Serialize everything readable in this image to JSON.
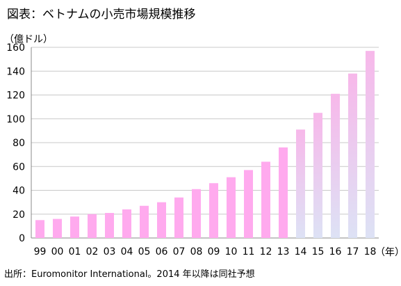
{
  "title": "図表：ベトナムの小売市場規模推移",
  "source_note": "出所：Euromonitor International。2014 年以降は同社予想",
  "colors": {
    "actual_bar": "#ffaaee",
    "forecast_top": "#f7b8ea",
    "forecast_bottom": "#dde2f5",
    "gridline": "#c8c8c8",
    "axis": "#888888"
  },
  "chart_data": {
    "type": "bar",
    "title": "図表：ベトナムの小売市場規模推移",
    "ylabel": "（億ドル）",
    "xlabel": "（年）",
    "ylim": [
      0,
      160
    ],
    "y_ticks": [
      "0",
      "20",
      "40",
      "60",
      "80",
      "100",
      "120",
      "140",
      "160"
    ],
    "grid": true,
    "categories": [
      "99",
      "00",
      "01",
      "02",
      "03",
      "04",
      "05",
      "06",
      "07",
      "08",
      "09",
      "10",
      "11",
      "12",
      "13",
      "14",
      "15",
      "16",
      "17",
      "18"
    ],
    "values": [
      15,
      16,
      18,
      20,
      21,
      24,
      27,
      30,
      34,
      41,
      46,
      51,
      57,
      64,
      76,
      91,
      105,
      121,
      138,
      157
    ],
    "forecast_from": "14"
  }
}
